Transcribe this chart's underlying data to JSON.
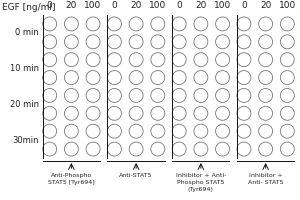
{
  "title": "EGF [ng/ml]",
  "col_groups": [
    {
      "label": "Anti-Phospho\nSTAT5 [Tyr694]"
    },
    {
      "label": "Anti-STAT5"
    },
    {
      "label": "Inhibitor + Anti-\nPhospho STAT5\n(Tyr694)"
    },
    {
      "label": "Inhibitor +\nAnti- STAT5"
    }
  ],
  "concentrations": [
    "0",
    "20",
    "100"
  ],
  "row_labels": [
    "0 min",
    "10 min",
    "20 min",
    "30min"
  ],
  "rows_per_time": 2,
  "bg_color": "#ffffff",
  "circle_edge_color": "#777777",
  "circle_face_color": "#ffffff",
  "text_color": "#222222",
  "line_color": "#111111",
  "fontsize_header": 6.5,
  "fontsize_labels": 6,
  "fontsize_annot": 4.5
}
